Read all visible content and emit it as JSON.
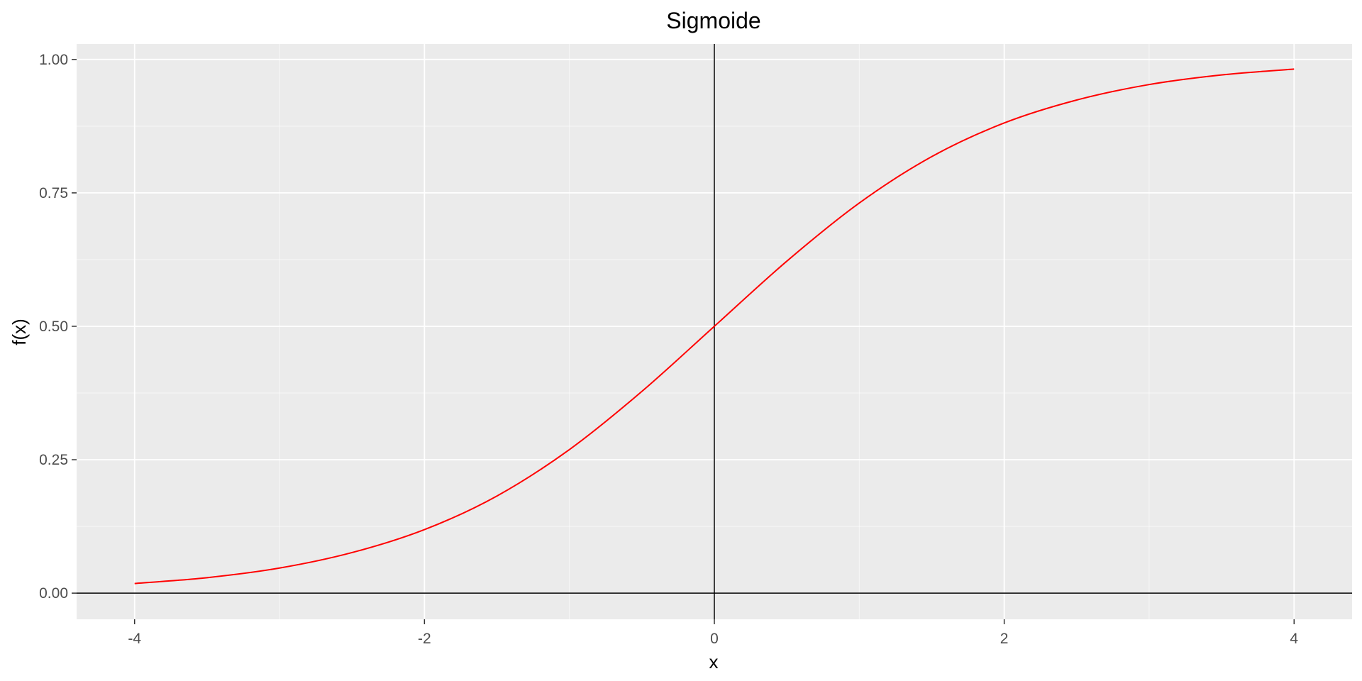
{
  "chart_data": {
    "type": "line",
    "title": "Sigmoide",
    "xlabel": "x",
    "ylabel": "f(x)",
    "xlim": [
      -4.4,
      4.4
    ],
    "ylim": [
      -0.049,
      1.029
    ],
    "x_major_ticks": [
      -4,
      -2,
      0,
      2,
      4
    ],
    "x_tick_labels": [
      "-4",
      "-2",
      "0",
      "2",
      "4"
    ],
    "x_minor_ticks": [
      -3,
      -1,
      1,
      3
    ],
    "y_major_ticks": [
      0,
      0.25,
      0.5,
      0.75,
      1
    ],
    "y_tick_labels": [
      "0.00",
      "0.25",
      "0.50",
      "0.75",
      "1.00"
    ],
    "y_minor_ticks": [
      0.125,
      0.375,
      0.625,
      0.875
    ],
    "grid": true,
    "reference_lines": {
      "hline_y": 0,
      "vline_x": 0
    },
    "series": [
      {
        "color": "#ff0000",
        "x": [
          -4,
          -3.5,
          -3,
          -2.5,
          -2,
          -1.5,
          -1,
          -0.5,
          0,
          0.5,
          1,
          1.5,
          2,
          2.5,
          3,
          3.5,
          4
        ],
        "y": [
          0.018,
          0.029,
          0.047,
          0.076,
          0.119,
          0.182,
          0.269,
          0.378,
          0.5,
          0.622,
          0.731,
          0.818,
          0.881,
          0.924,
          0.953,
          0.971,
          0.982
        ]
      }
    ],
    "colors": {
      "panel_background": "#ebebeb",
      "grid_major": "#ffffff",
      "grid_minor": "#f4f4f4",
      "reference_line": "#000000",
      "line": "#ff0000"
    }
  }
}
